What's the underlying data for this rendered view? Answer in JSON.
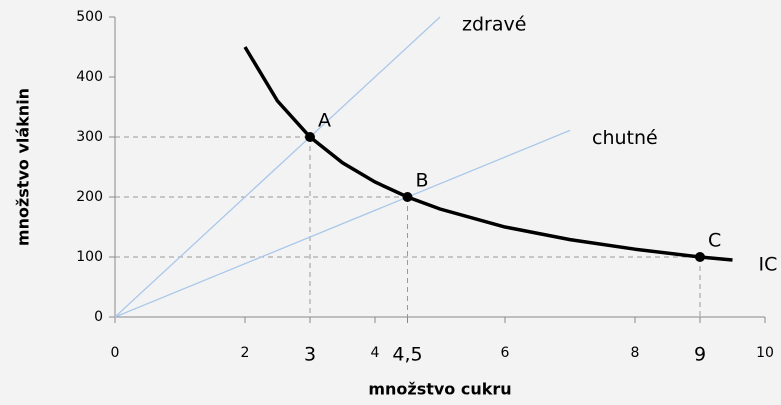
{
  "chart_data": {
    "type": "line",
    "x_label": "množstvo cukru",
    "y_label": "množstvo vláknin",
    "xlim": [
      0,
      10
    ],
    "ylim": [
      0,
      500
    ],
    "xticks": [
      0,
      2,
      4,
      6,
      8,
      10
    ],
    "yticks": [
      0,
      100,
      200,
      300,
      400,
      500
    ],
    "marked_xticks": [
      3,
      {
        "value": 4.5,
        "label": "4,5"
      },
      9
    ],
    "series": [
      {
        "name": "zdravé",
        "color": "#a9c8ea",
        "x": [
          0,
          5
        ],
        "values": [
          0,
          500
        ]
      },
      {
        "name": "chutné",
        "color": "#a9c8ea",
        "x": [
          0,
          7
        ],
        "values": [
          0,
          311
        ]
      },
      {
        "name": "IC",
        "color": "#000000",
        "x": [
          2,
          2.5,
          3,
          3.5,
          4,
          4.5,
          5,
          6,
          7,
          8,
          9,
          9.5
        ],
        "values": [
          450,
          360,
          300,
          257,
          225,
          200,
          180,
          150,
          129,
          113,
          100,
          95
        ]
      }
    ],
    "points": [
      {
        "label": "A",
        "x": 3,
        "y": 300
      },
      {
        "label": "B",
        "x": 4.5,
        "y": 200
      },
      {
        "label": "C",
        "x": 9,
        "y": 100
      }
    ]
  }
}
